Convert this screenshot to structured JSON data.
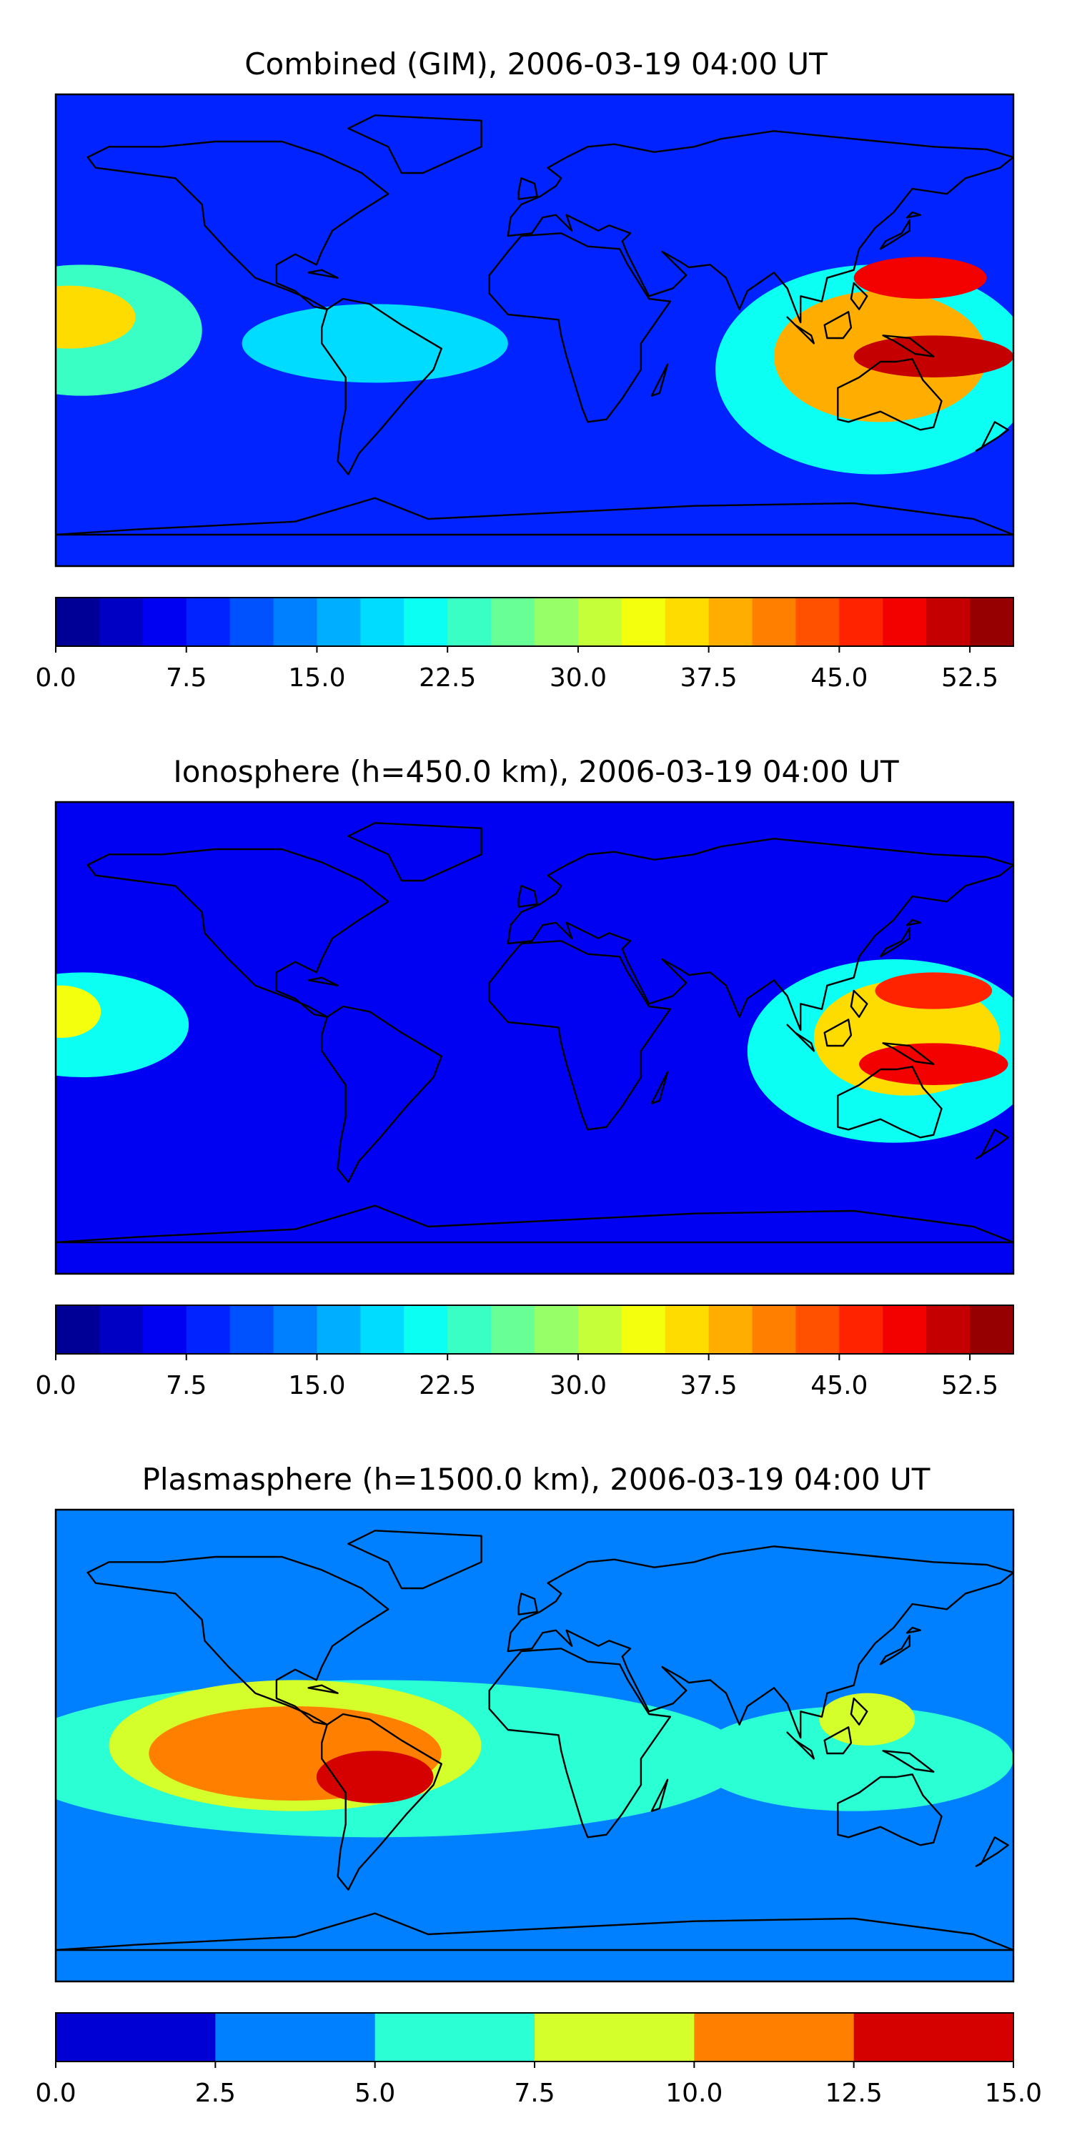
{
  "chart_data": [
    {
      "type": "heatmap",
      "title": "Combined (GIM), 2006-03-19 04:00 UT",
      "colorbar": {
        "min": 0.0,
        "max": 55.0,
        "step": 2.5,
        "tick_labels": [
          "0.0",
          "7.5",
          "15.0",
          "22.5",
          "30.0",
          "37.5",
          "45.0",
          "52.5"
        ],
        "tick_values": [
          0,
          7.5,
          15,
          22.5,
          30,
          37.5,
          45,
          52.5
        ]
      },
      "background_level": 7.5,
      "regions": [
        {
          "lon": 128,
          "lat": -15,
          "rlon": 60,
          "rlat": 40,
          "value": 20
        },
        {
          "lon": 130,
          "lat": -10,
          "rlon": 40,
          "rlat": 25,
          "value": 37.5
        },
        {
          "lon": 145,
          "lat": 20,
          "rlon": 25,
          "rlat": 8,
          "value": 47.5
        },
        {
          "lon": 150,
          "lat": -10,
          "rlon": 30,
          "rlat": 8,
          "value": 50
        },
        {
          "lon": -170,
          "lat": 0,
          "rlon": 45,
          "rlat": 25,
          "value": 22.5
        },
        {
          "lon": -175,
          "lat": 5,
          "rlon": 25,
          "rlat": 12,
          "value": 35
        },
        {
          "lon": -60,
          "lat": -5,
          "rlon": 50,
          "rlat": 15,
          "value": 17.5
        }
      ]
    },
    {
      "type": "heatmap",
      "title": "Ionosphere  (h=450.0 km), 2006-03-19 04:00 UT",
      "colorbar": {
        "min": 0.0,
        "max": 55.0,
        "step": 2.5,
        "tick_labels": [
          "0.0",
          "7.5",
          "15.0",
          "22.5",
          "30.0",
          "37.5",
          "45.0",
          "52.5"
        ],
        "tick_values": [
          0,
          7.5,
          15,
          22.5,
          30,
          37.5,
          45,
          52.5
        ]
      },
      "background_level": 5,
      "regions": [
        {
          "lon": 135,
          "lat": -5,
          "rlon": 55,
          "rlat": 35,
          "value": 20
        },
        {
          "lon": 140,
          "lat": 0,
          "rlon": 35,
          "rlat": 22,
          "value": 35
        },
        {
          "lon": 150,
          "lat": 18,
          "rlon": 22,
          "rlat": 7,
          "value": 45
        },
        {
          "lon": 150,
          "lat": -10,
          "rlon": 28,
          "rlat": 8,
          "value": 47.5
        },
        {
          "lon": -170,
          "lat": 5,
          "rlon": 40,
          "rlat": 20,
          "value": 20
        },
        {
          "lon": -178,
          "lat": 10,
          "rlon": 15,
          "rlat": 10,
          "value": 32.5
        }
      ]
    },
    {
      "type": "heatmap",
      "title": "Plasmasphere (h=1500.0 km), 2006-03-19 04:00 UT",
      "colorbar": {
        "min": 0.0,
        "max": 15.0,
        "step": 2.5,
        "tick_labels": [
          "0.0",
          "2.5",
          "5.0",
          "7.5",
          "10.0",
          "12.5",
          "15.0"
        ],
        "tick_values": [
          0,
          2.5,
          5,
          7.5,
          10,
          12.5,
          15
        ]
      },
      "background_level": 2.5,
      "regions": [
        {
          "lon": -60,
          "lat": -5,
          "rlon": 140,
          "rlat": 30,
          "value": 5
        },
        {
          "lon": 120,
          "lat": -5,
          "rlon": 60,
          "rlat": 20,
          "value": 5
        },
        {
          "lon": -90,
          "lat": 0,
          "rlon": 70,
          "rlat": 25,
          "value": 7.5
        },
        {
          "lon": 125,
          "lat": 10,
          "rlon": 18,
          "rlat": 10,
          "value": 7.5
        },
        {
          "lon": -90,
          "lat": -3,
          "rlon": 55,
          "rlat": 18,
          "value": 10
        },
        {
          "lon": -60,
          "lat": -12,
          "rlon": 22,
          "rlat": 10,
          "value": 12.5
        }
      ]
    }
  ]
}
